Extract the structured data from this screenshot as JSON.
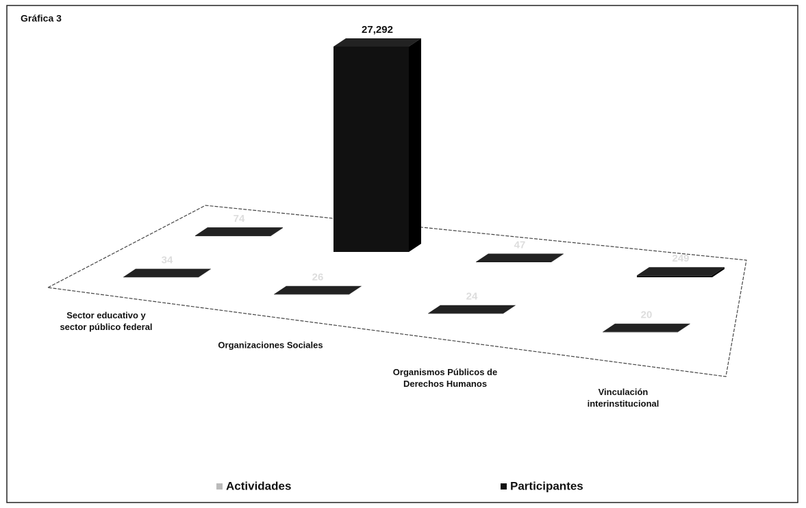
{
  "chart_data": {
    "type": "bar3d",
    "title": "Gráfica 3",
    "categories": [
      "Sector educativo y sector público federal",
      "Organizaciones Sociales",
      "Organismos Públicos de Derechos Humanos",
      "Vinculación interinstitucional"
    ],
    "series": [
      {
        "name": "Actividades",
        "color": "#1a1a1a",
        "values": [
          34,
          26,
          24,
          20
        ]
      },
      {
        "name": "Participantes",
        "color": "#111111",
        "values": [
          74,
          27292,
          47,
          249
        ],
        "value_labels": [
          "74",
          "27,292",
          "47",
          "249"
        ]
      }
    ]
  }
}
